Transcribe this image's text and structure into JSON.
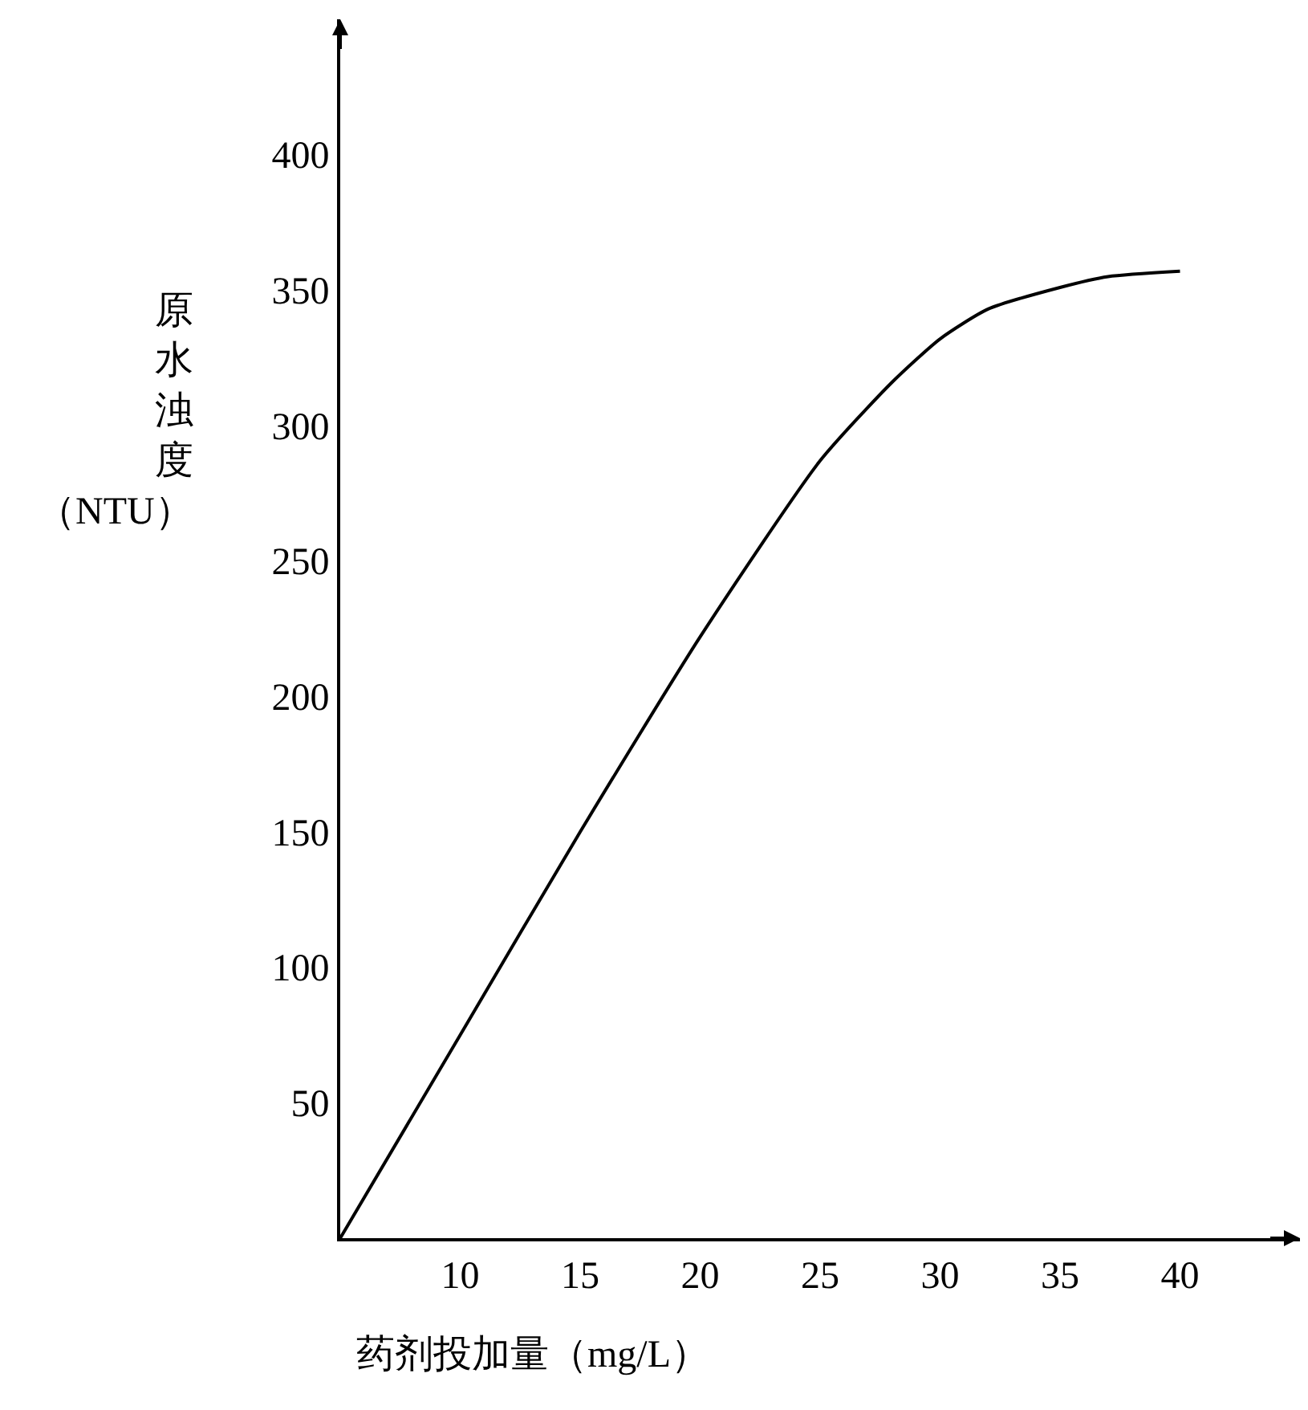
{
  "chart_data": {
    "type": "line",
    "xlabel": "药剂投加量（mg/L）",
    "ylabel": "原水浊度（NTU）",
    "x": [
      5,
      10,
      15,
      20,
      25,
      28,
      30,
      32,
      35,
      37,
      40
    ],
    "series": [
      {
        "color": "#000000",
        "values": [
          0,
          75,
          150,
          222,
          287,
          316,
          332,
          343,
          351,
          355,
          357
        ]
      }
    ],
    "xlim": [
      5,
      45
    ],
    "ylim": [
      0,
      450
    ],
    "xticks": [
      10,
      15,
      20,
      25,
      30,
      35,
      40
    ],
    "yticks": [
      50,
      100,
      150,
      200,
      250,
      300,
      350,
      400
    ],
    "marker": "none",
    "line_style": "solid"
  }
}
